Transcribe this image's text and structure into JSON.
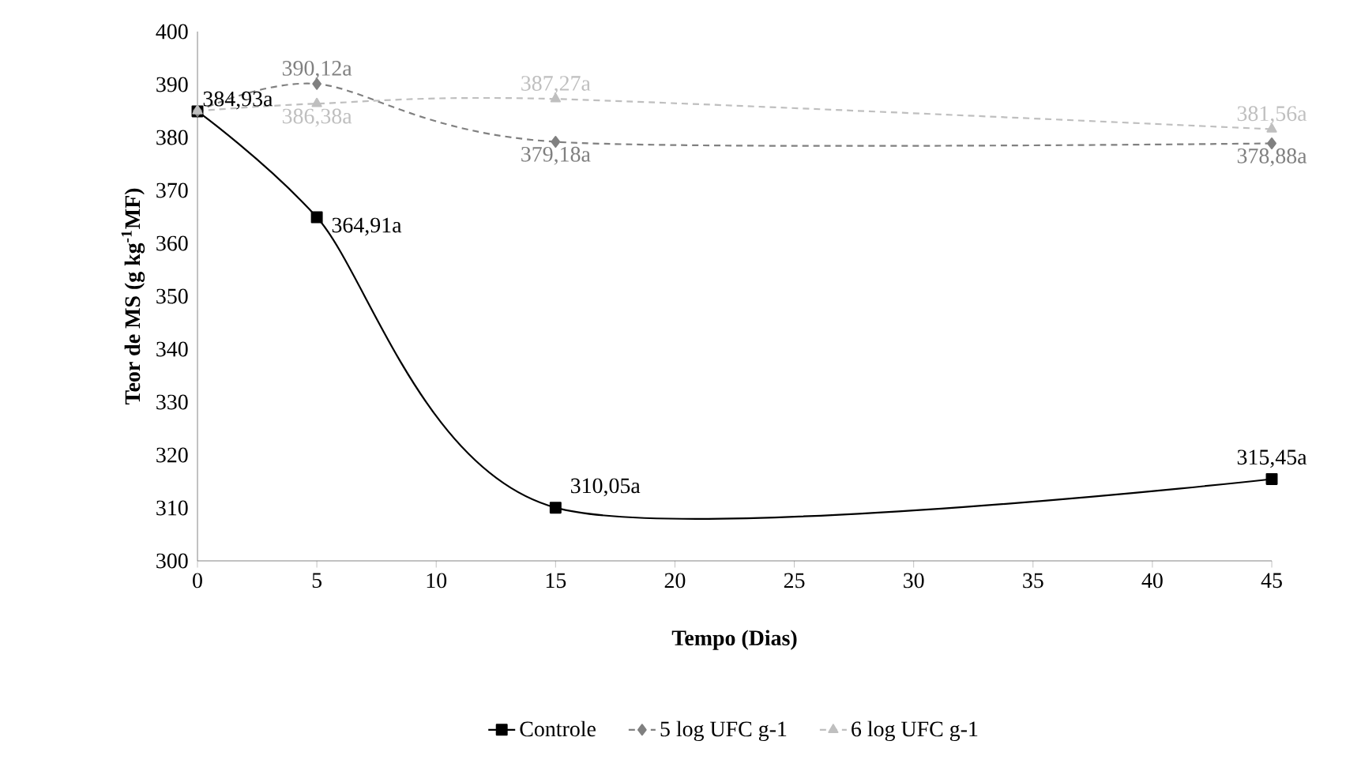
{
  "chart_data": {
    "type": "line",
    "xlabel": "Tempo (Dias)",
    "ylabel": "Teor de MS (g kg$^{-1}$MF)",
    "x": [
      0,
      5,
      15,
      45
    ],
    "xlim": [
      0,
      45
    ],
    "xticks": [
      0,
      5,
      10,
      15,
      20,
      25,
      30,
      35,
      40,
      45
    ],
    "ylim": [
      300,
      400
    ],
    "yticks": [
      300,
      310,
      320,
      330,
      340,
      350,
      360,
      370,
      380,
      390,
      400
    ],
    "grid": false,
    "legend": "bottom",
    "series": [
      {
        "name": "Controle",
        "color": "#000000",
        "marker": "square",
        "line_style": "solid",
        "values": [
          384.93,
          364.91,
          310.05,
          315.45
        ],
        "value_labels": [
          "384,93a",
          "364,91a",
          "310,05a",
          "315,45a"
        ]
      },
      {
        "name": "5 log UFC g-1",
        "color": "#808080",
        "marker": "diamond",
        "line_style": "dashed",
        "values": [
          385,
          390.12,
          379.18,
          378.88
        ],
        "value_labels": [
          null,
          "390,12a",
          "379,18a",
          "378,88a"
        ]
      },
      {
        "name": "6 log UFC g-1",
        "color": "#bfbfbf",
        "marker": "triangle",
        "line_style": "dashed",
        "values": [
          385,
          386.38,
          387.27,
          381.56
        ],
        "value_labels": [
          null,
          "386,38a",
          "387,27a",
          "381,56a"
        ]
      }
    ]
  }
}
